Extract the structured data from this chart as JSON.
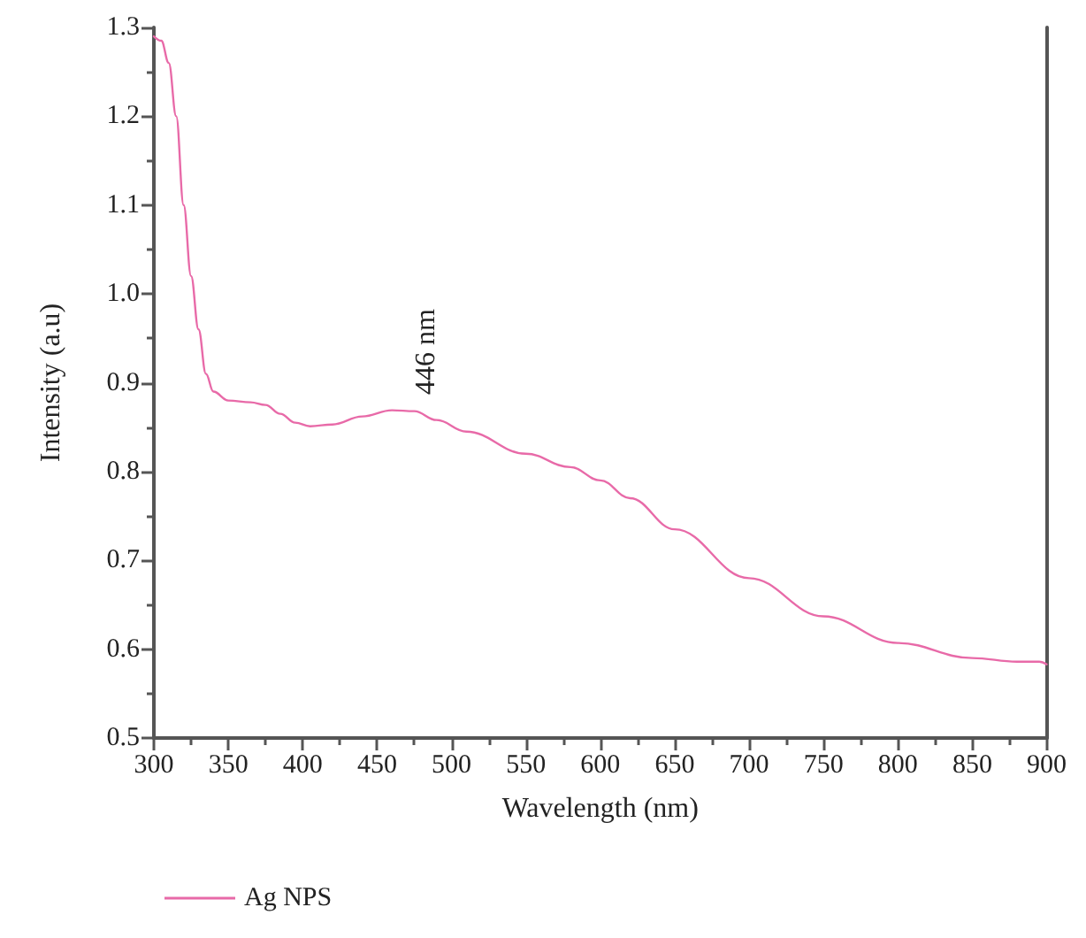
{
  "chart_data": {
    "type": "line",
    "xlabel": "Wavelength (nm)",
    "ylabel": "Intensity (a.u)",
    "xlim": [
      300,
      900
    ],
    "xticks": [
      300,
      350,
      400,
      450,
      500,
      550,
      600,
      650,
      700,
      750,
      800,
      850,
      900
    ],
    "ylim": [
      0.5,
      1.3
    ],
    "yticks": [
      0.5,
      0.6,
      0.7,
      0.8,
      0.9,
      {
        "value": 1,
        "label": "1.0"
      },
      1.1,
      1.2,
      1.3
    ],
    "x": [
      300,
      305,
      310,
      315,
      320,
      325,
      330,
      335,
      340,
      350,
      365,
      375,
      385,
      395,
      405,
      420,
      440,
      460,
      475,
      490,
      510,
      550,
      580,
      600,
      620,
      650,
      700,
      750,
      800,
      850,
      880,
      895,
      900
    ],
    "series": [
      {
        "name": "Ag NPS",
        "color": "#e86aa8",
        "values": [
          1.29,
          1.285,
          1.26,
          1.2,
          1.1,
          1.02,
          0.96,
          0.91,
          0.89,
          0.88,
          0.878,
          0.875,
          0.865,
          0.855,
          0.851,
          0.853,
          0.862,
          0.869,
          0.868,
          0.858,
          0.845,
          0.82,
          0.805,
          0.79,
          0.77,
          0.735,
          0.68,
          0.637,
          0.607,
          0.59,
          0.586,
          0.586,
          0.583
        ]
      }
    ],
    "annotations": [
      "446 nm"
    ],
    "legend": "bottom left",
    "grid": false,
    "marker": "none",
    "line_style": "solid"
  }
}
